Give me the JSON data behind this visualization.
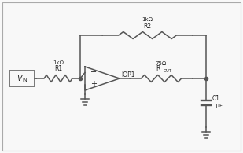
{
  "bg_color": "#f8f8f8",
  "line_color": "#555555",
  "text_color": "#222222",
  "border_color": "#aaaaaa",
  "lw": 1.1,
  "fig_w": 3.09,
  "fig_h": 1.95,
  "labels": {
    "vin": "V",
    "vin_sub": "IN",
    "r1_name": "R1",
    "r1_val": "1kΩ",
    "r2_name": "R2",
    "r2_val": "1kΩ",
    "rout_name": "R",
    "rout_sub": "OUT",
    "rout_val": "75Ω",
    "c1_name": "C1",
    "c1_val": "1μF",
    "iop1": "IOP1"
  }
}
